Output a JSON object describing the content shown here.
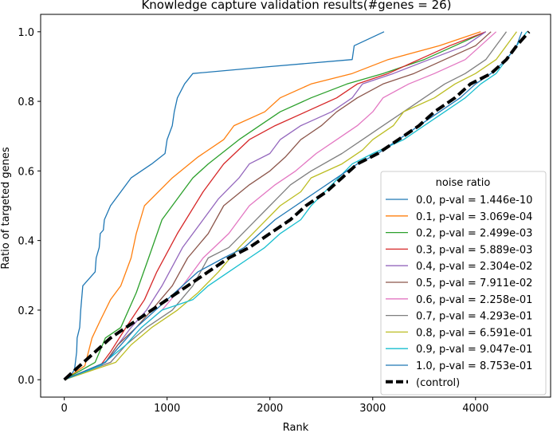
{
  "chart_data": {
    "type": "line",
    "title": "Knowledge capture validation results(#genes = 26)",
    "xlabel": "Rank",
    "ylabel": "Ratio of targeted genes",
    "xlim": [
      -230,
      4730
    ],
    "ylim": [
      -0.05,
      1.05
    ],
    "xticks": [
      0,
      1000,
      2000,
      3000,
      4000
    ],
    "yticks": [
      0.0,
      0.2,
      0.4,
      0.6,
      0.8,
      1.0
    ],
    "xtick_labels": [
      "0",
      "1000",
      "2000",
      "3000",
      "4000"
    ],
    "ytick_labels": [
      "0.0",
      "0.2",
      "0.4",
      "0.6",
      "0.8",
      "1.0"
    ],
    "grid": false,
    "legend": {
      "title": "noise ratio",
      "placement": "lower-right"
    },
    "series": [
      {
        "name": "0.0, p-val = 1.446e-10",
        "color": "#1f77b4",
        "style": "solid",
        "points": [
          [
            0,
            0
          ],
          [
            60,
            0.01
          ],
          [
            100,
            0.03
          ],
          [
            120,
            0.08
          ],
          [
            125,
            0.12
          ],
          [
            150,
            0.15
          ],
          [
            160,
            0.2
          ],
          [
            180,
            0.27
          ],
          [
            300,
            0.31
          ],
          [
            310,
            0.35
          ],
          [
            340,
            0.38
          ],
          [
            350,
            0.42
          ],
          [
            380,
            0.43
          ],
          [
            390,
            0.46
          ],
          [
            450,
            0.5
          ],
          [
            650,
            0.58
          ],
          [
            850,
            0.62
          ],
          [
            980,
            0.65
          ],
          [
            1000,
            0.69
          ],
          [
            1050,
            0.73
          ],
          [
            1070,
            0.77
          ],
          [
            1100,
            0.81
          ],
          [
            1170,
            0.85
          ],
          [
            1250,
            0.88
          ],
          [
            2000,
            0.9
          ],
          [
            2800,
            0.92
          ],
          [
            2820,
            0.96
          ],
          [
            3110,
            1.0
          ]
        ]
      },
      {
        "name": "0.1, p-val = 3.069e-04",
        "color": "#ff7f0e",
        "style": "solid",
        "points": [
          [
            0,
            0
          ],
          [
            200,
            0.04
          ],
          [
            270,
            0.12
          ],
          [
            350,
            0.17
          ],
          [
            450,
            0.23
          ],
          [
            550,
            0.27
          ],
          [
            650,
            0.35
          ],
          [
            700,
            0.42
          ],
          [
            780,
            0.5
          ],
          [
            1050,
            0.58
          ],
          [
            1300,
            0.64
          ],
          [
            1550,
            0.69
          ],
          [
            1650,
            0.73
          ],
          [
            1950,
            0.77
          ],
          [
            2100,
            0.81
          ],
          [
            2400,
            0.85
          ],
          [
            2800,
            0.88
          ],
          [
            3150,
            0.92
          ],
          [
            3650,
            0.96
          ],
          [
            4050,
            1.0
          ]
        ]
      },
      {
        "name": "0.2, p-val = 2.499e-03",
        "color": "#2ca02c",
        "style": "solid",
        "points": [
          [
            0,
            0
          ],
          [
            300,
            0.05
          ],
          [
            400,
            0.12
          ],
          [
            550,
            0.15
          ],
          [
            700,
            0.25
          ],
          [
            820,
            0.35
          ],
          [
            950,
            0.46
          ],
          [
            1150,
            0.54
          ],
          [
            1250,
            0.58
          ],
          [
            1400,
            0.62
          ],
          [
            1700,
            0.69
          ],
          [
            1900,
            0.73
          ],
          [
            2100,
            0.77
          ],
          [
            2400,
            0.81
          ],
          [
            2750,
            0.85
          ],
          [
            3100,
            0.88
          ],
          [
            3500,
            0.92
          ],
          [
            3800,
            0.96
          ],
          [
            4100,
            1.0
          ]
        ]
      },
      {
        "name": "0.3, p-val = 5.889e-03",
        "color": "#d62728",
        "style": "solid",
        "points": [
          [
            0,
            0
          ],
          [
            350,
            0.04
          ],
          [
            450,
            0.08
          ],
          [
            600,
            0.15
          ],
          [
            780,
            0.23
          ],
          [
            900,
            0.31
          ],
          [
            1100,
            0.42
          ],
          [
            1350,
            0.54
          ],
          [
            1550,
            0.62
          ],
          [
            1800,
            0.69
          ],
          [
            2050,
            0.73
          ],
          [
            2350,
            0.77
          ],
          [
            2650,
            0.81
          ],
          [
            2850,
            0.85
          ],
          [
            3150,
            0.88
          ],
          [
            3450,
            0.92
          ],
          [
            3750,
            0.96
          ],
          [
            4100,
            1.0
          ]
        ]
      },
      {
        "name": "0.4, p-val = 2.304e-02",
        "color": "#9467bd",
        "style": "solid",
        "points": [
          [
            0,
            0
          ],
          [
            400,
            0.05
          ],
          [
            520,
            0.1
          ],
          [
            650,
            0.15
          ],
          [
            800,
            0.2
          ],
          [
            950,
            0.27
          ],
          [
            1150,
            0.38
          ],
          [
            1350,
            0.46
          ],
          [
            1500,
            0.52
          ],
          [
            1700,
            0.58
          ],
          [
            1800,
            0.62
          ],
          [
            2000,
            0.65
          ],
          [
            2100,
            0.69
          ],
          [
            2300,
            0.73
          ],
          [
            2600,
            0.77
          ],
          [
            2800,
            0.81
          ],
          [
            2900,
            0.85
          ],
          [
            3200,
            0.88
          ],
          [
            3550,
            0.92
          ],
          [
            3900,
            0.96
          ],
          [
            4100,
            1.0
          ]
        ]
      },
      {
        "name": "0.5, p-val = 7.911e-02",
        "color": "#8c564b",
        "style": "solid",
        "points": [
          [
            0,
            0
          ],
          [
            400,
            0.05
          ],
          [
            520,
            0.1
          ],
          [
            700,
            0.15
          ],
          [
            850,
            0.2
          ],
          [
            1050,
            0.27
          ],
          [
            1200,
            0.35
          ],
          [
            1400,
            0.42
          ],
          [
            1550,
            0.5
          ],
          [
            1800,
            0.56
          ],
          [
            2000,
            0.6
          ],
          [
            2150,
            0.64
          ],
          [
            2300,
            0.69
          ],
          [
            2500,
            0.73
          ],
          [
            2650,
            0.77
          ],
          [
            2850,
            0.81
          ],
          [
            3100,
            0.85
          ],
          [
            3400,
            0.88
          ],
          [
            3700,
            0.92
          ],
          [
            4000,
            0.96
          ],
          [
            4150,
            1.0
          ]
        ]
      },
      {
        "name": "0.6, p-val = 2.258e-01",
        "color": "#e377c2",
        "style": "solid",
        "points": [
          [
            0,
            0
          ],
          [
            450,
            0.05
          ],
          [
            600,
            0.1
          ],
          [
            750,
            0.15
          ],
          [
            950,
            0.2
          ],
          [
            1150,
            0.27
          ],
          [
            1350,
            0.35
          ],
          [
            1600,
            0.42
          ],
          [
            1800,
            0.5
          ],
          [
            2050,
            0.56
          ],
          [
            2250,
            0.6
          ],
          [
            2450,
            0.65
          ],
          [
            2650,
            0.69
          ],
          [
            2850,
            0.73
          ],
          [
            3000,
            0.77
          ],
          [
            3100,
            0.81
          ],
          [
            3350,
            0.85
          ],
          [
            3600,
            0.88
          ],
          [
            3900,
            0.92
          ],
          [
            4050,
            0.96
          ],
          [
            4200,
            1.0
          ]
        ]
      },
      {
        "name": "0.7, p-val = 4.293e-01",
        "color": "#7f7f7f",
        "style": "solid",
        "points": [
          [
            0,
            0
          ],
          [
            450,
            0.05
          ],
          [
            600,
            0.1
          ],
          [
            800,
            0.15
          ],
          [
            1050,
            0.2
          ],
          [
            1250,
            0.27
          ],
          [
            1400,
            0.35
          ],
          [
            1600,
            0.38
          ],
          [
            1800,
            0.44
          ],
          [
            2000,
            0.5
          ],
          [
            2200,
            0.56
          ],
          [
            2400,
            0.6
          ],
          [
            2700,
            0.65
          ],
          [
            2900,
            0.69
          ],
          [
            3100,
            0.73
          ],
          [
            3300,
            0.77
          ],
          [
            3500,
            0.81
          ],
          [
            3700,
            0.85
          ],
          [
            3900,
            0.88
          ],
          [
            4100,
            0.92
          ],
          [
            4200,
            0.96
          ],
          [
            4300,
            1.0
          ]
        ]
      },
      {
        "name": "0.8, p-val = 6.591e-01",
        "color": "#bcbd22",
        "style": "solid",
        "points": [
          [
            0,
            0
          ],
          [
            500,
            0.05
          ],
          [
            650,
            0.1
          ],
          [
            850,
            0.15
          ],
          [
            1100,
            0.2
          ],
          [
            1300,
            0.25
          ],
          [
            1500,
            0.31
          ],
          [
            1700,
            0.38
          ],
          [
            1900,
            0.44
          ],
          [
            2100,
            0.5
          ],
          [
            2300,
            0.54
          ],
          [
            2400,
            0.58
          ],
          [
            2700,
            0.62
          ],
          [
            2900,
            0.66
          ],
          [
            3000,
            0.69
          ],
          [
            3200,
            0.73
          ],
          [
            3300,
            0.77
          ],
          [
            3600,
            0.81
          ],
          [
            3800,
            0.85
          ],
          [
            4000,
            0.88
          ],
          [
            4200,
            0.92
          ],
          [
            4300,
            0.96
          ],
          [
            4400,
            1.0
          ]
        ]
      },
      {
        "name": "0.9, p-val = 9.047e-01",
        "color": "#17becf",
        "style": "solid",
        "points": [
          [
            0,
            0
          ],
          [
            350,
            0.04
          ],
          [
            600,
            0.1
          ],
          [
            750,
            0.15
          ],
          [
            950,
            0.2
          ],
          [
            1250,
            0.23
          ],
          [
            1400,
            0.27
          ],
          [
            1600,
            0.31
          ],
          [
            1800,
            0.35
          ],
          [
            1950,
            0.38
          ],
          [
            2100,
            0.42
          ],
          [
            2300,
            0.46
          ],
          [
            2400,
            0.5
          ],
          [
            2600,
            0.56
          ],
          [
            2800,
            0.62
          ],
          [
            3000,
            0.65
          ],
          [
            3300,
            0.69
          ],
          [
            3500,
            0.73
          ],
          [
            3700,
            0.77
          ],
          [
            3900,
            0.81
          ],
          [
            4050,
            0.85
          ],
          [
            4200,
            0.88
          ],
          [
            4300,
            0.92
          ],
          [
            4400,
            0.96
          ],
          [
            4500,
            1.0
          ]
        ]
      },
      {
        "name": "1.0, p-val = 8.753e-01",
        "color": "#1f77b4",
        "style": "solid",
        "points": [
          [
            0,
            0
          ],
          [
            400,
            0.05
          ],
          [
            700,
            0.15
          ],
          [
            1000,
            0.23
          ],
          [
            1300,
            0.31
          ],
          [
            1550,
            0.35
          ],
          [
            1750,
            0.38
          ],
          [
            1900,
            0.42
          ],
          [
            2050,
            0.46
          ],
          [
            2250,
            0.5
          ],
          [
            2450,
            0.54
          ],
          [
            2650,
            0.58
          ],
          [
            2850,
            0.62
          ],
          [
            3050,
            0.65
          ],
          [
            3250,
            0.69
          ],
          [
            3450,
            0.73
          ],
          [
            3650,
            0.77
          ],
          [
            3850,
            0.81
          ],
          [
            4000,
            0.85
          ],
          [
            4150,
            0.88
          ],
          [
            4300,
            0.92
          ],
          [
            4400,
            0.96
          ],
          [
            4450,
            1.0
          ]
        ]
      },
      {
        "name": "(control)",
        "color": "#000000",
        "style": "dashed",
        "points": [
          [
            0,
            0
          ],
          [
            150,
            0.04
          ],
          [
            300,
            0.08
          ],
          [
            450,
            0.12
          ],
          [
            600,
            0.15
          ],
          [
            800,
            0.19
          ],
          [
            1000,
            0.23
          ],
          [
            1200,
            0.27
          ],
          [
            1400,
            0.31
          ],
          [
            1600,
            0.35
          ],
          [
            1800,
            0.38
          ],
          [
            2000,
            0.42
          ],
          [
            2200,
            0.46
          ],
          [
            2350,
            0.5
          ],
          [
            2550,
            0.54
          ],
          [
            2700,
            0.58
          ],
          [
            2850,
            0.62
          ],
          [
            3050,
            0.65
          ],
          [
            3250,
            0.69
          ],
          [
            3450,
            0.73
          ],
          [
            3600,
            0.77
          ],
          [
            3800,
            0.81
          ],
          [
            3950,
            0.85
          ],
          [
            4150,
            0.88
          ],
          [
            4300,
            0.92
          ],
          [
            4400,
            0.96
          ],
          [
            4520,
            1.0
          ]
        ]
      }
    ]
  }
}
